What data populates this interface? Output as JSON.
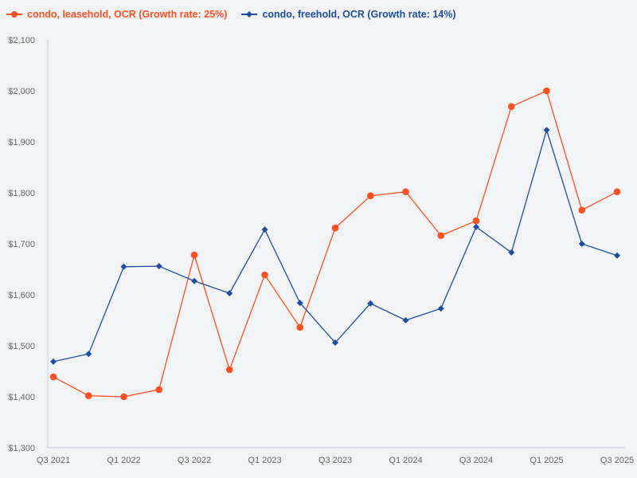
{
  "colors": {
    "background": "#f2f3f5",
    "leasehold": "#fc5123",
    "freehold": "#1f4e9e",
    "axis": "#c5d0e3",
    "tick_text": "#666666"
  },
  "legend": [
    {
      "label": "condo, leasehold, OCR (Growth rate: 25%)",
      "marker": "circle",
      "color": "#fc5123"
    },
    {
      "label": "condo, freehold, OCR (Growth rate: 14%)",
      "marker": "diamond",
      "color": "#1f4e9e"
    }
  ],
  "chart_data": {
    "type": "line",
    "title": "",
    "xlabel": "",
    "ylabel": "",
    "ylim": [
      1300,
      2100
    ],
    "yticks": [
      1300,
      1400,
      1500,
      1600,
      1700,
      1800,
      1900,
      2000,
      2100
    ],
    "ytick_labels": [
      "$1,300",
      "$1,400",
      "$1,500",
      "$1,600",
      "$1,700",
      "$1,800",
      "$1,900",
      "$2,000",
      "$2,100"
    ],
    "x": [
      "Q3 2021",
      "Q4 2021",
      "Q1 2022",
      "Q2 2022",
      "Q3 2022",
      "Q4 2022",
      "Q1 2023",
      "Q2 2023",
      "Q3 2023",
      "Q4 2023",
      "Q1 2024",
      "Q2 2024",
      "Q3 2024",
      "Q4 2024",
      "Q1 2025",
      "Q2 2025",
      "Q3 2025"
    ],
    "xtick_labels": [
      "Q3 2021",
      "Q1 2022",
      "Q3 2022",
      "Q1 2023",
      "Q3 2023",
      "Q1 2024",
      "Q3 2024",
      "Q1 2025",
      "Q3 2025"
    ],
    "grid": false,
    "legend_position": "top-left",
    "series": [
      {
        "name": "condo, leasehold, OCR (Growth rate: 25%)",
        "color": "#fc5123",
        "marker": "circle",
        "values": [
          1439,
          1402,
          1400,
          1414,
          1678,
          1453,
          1639,
          1536,
          1731,
          1794,
          1802,
          1716,
          1745,
          1969,
          2000,
          1766,
          1802
        ]
      },
      {
        "name": "condo, freehold, OCR (Growth rate: 14%)",
        "color": "#1f4e9e",
        "marker": "diamond",
        "values": [
          1469,
          1484,
          1655,
          1656,
          1627,
          1603,
          1728,
          1584,
          1506,
          1583,
          1550,
          1573,
          1733,
          1683,
          1923,
          1700,
          1677
        ]
      }
    ]
  }
}
